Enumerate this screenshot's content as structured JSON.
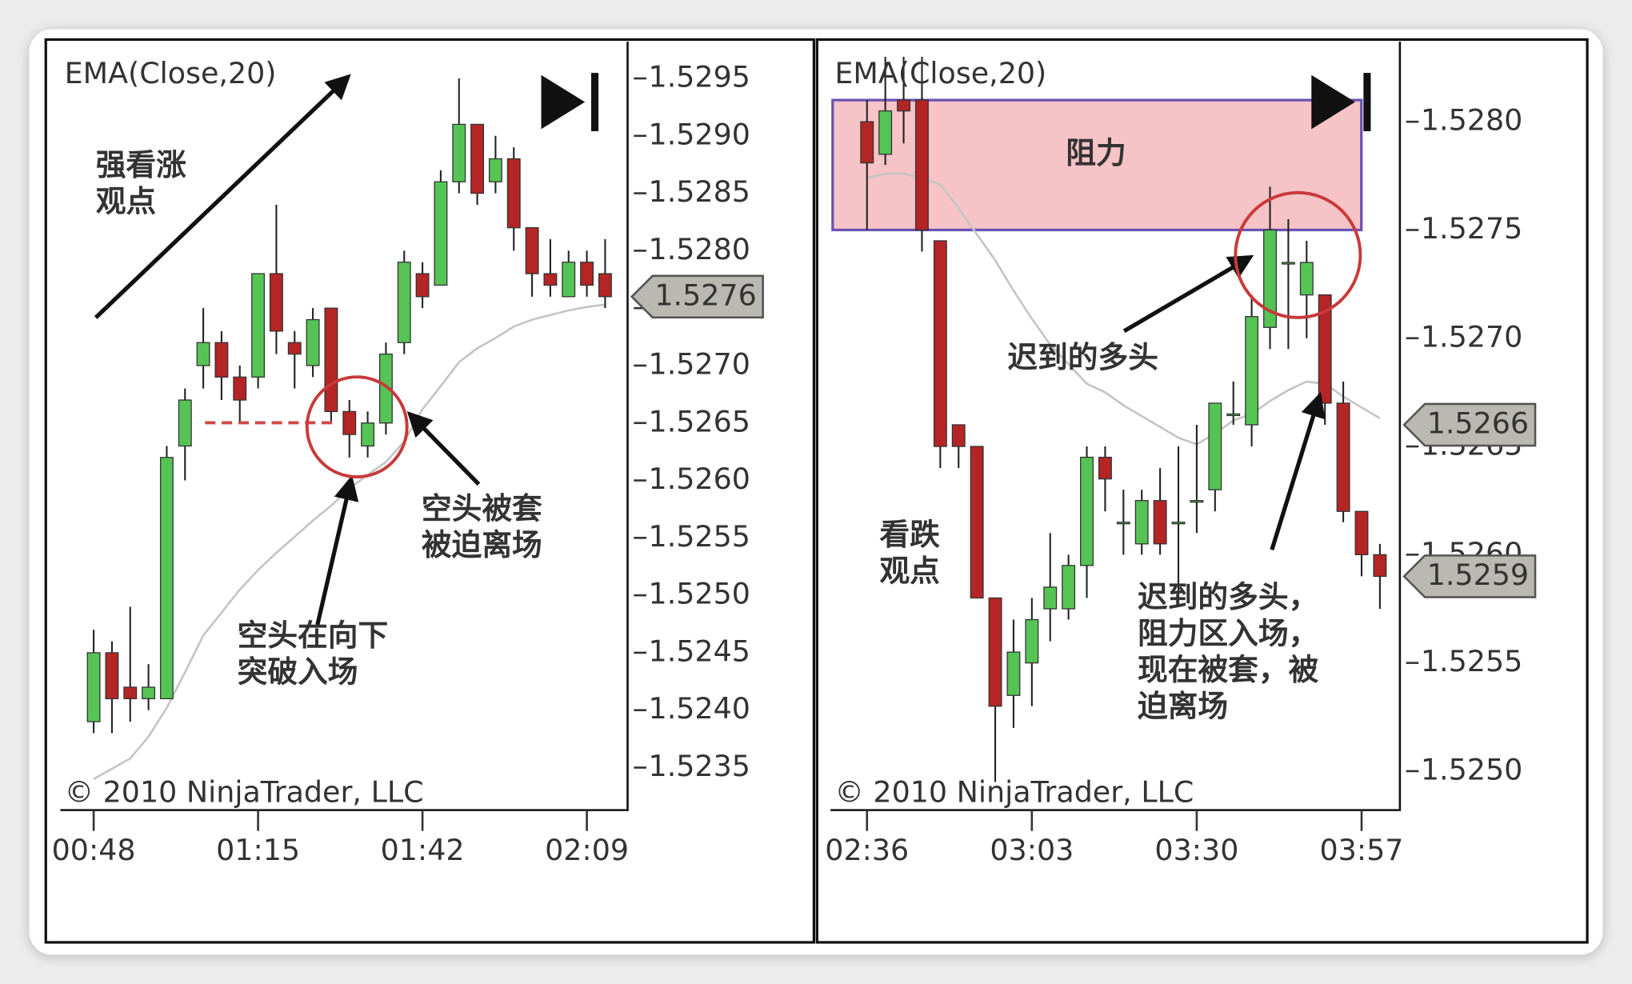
{
  "chart_data": [
    {
      "type": "candlestick",
      "categories": [
        "00:48",
        null,
        null,
        null,
        null,
        null,
        null,
        null,
        null,
        "01:15",
        null,
        null,
        null,
        null,
        null,
        null,
        null,
        null,
        "01:42",
        null,
        null,
        null,
        null,
        null,
        null,
        null,
        null,
        "02:09",
        null
      ],
      "open": [
        1.5239,
        1.5245,
        1.5242,
        1.5241,
        1.5241,
        1.5263,
        1.527,
        1.5272,
        1.5269,
        1.5269,
        1.5278,
        1.5272,
        1.527,
        1.5275,
        1.5266,
        1.5263,
        1.5265,
        1.5272,
        1.5278,
        1.5277,
        1.5286,
        1.5291,
        1.5286,
        1.5288,
        1.5282,
        1.5278,
        1.5276,
        1.5279,
        1.5278
      ],
      "high": [
        1.5247,
        1.5246,
        1.5249,
        1.5244,
        1.5263,
        1.5268,
        1.5275,
        1.5273,
        1.527,
        1.5278,
        1.5284,
        1.5273,
        1.5275,
        1.5275,
        1.5267,
        1.5266,
        1.5272,
        1.528,
        1.5279,
        1.5287,
        1.5295,
        1.5291,
        1.529,
        1.5289,
        1.5282,
        1.5281,
        1.528,
        1.528,
        1.5281
      ],
      "low": [
        1.5238,
        1.5238,
        1.5239,
        1.524,
        1.5241,
        1.526,
        1.5268,
        1.5267,
        1.5265,
        1.5268,
        1.5271,
        1.5268,
        1.5269,
        1.5265,
        1.5262,
        1.5262,
        1.5264,
        1.5271,
        1.5275,
        1.5277,
        1.5285,
        1.5284,
        1.5285,
        1.528,
        1.5276,
        1.5276,
        1.5276,
        1.5276,
        1.5275
      ],
      "close": [
        1.5245,
        1.5241,
        1.5241,
        1.5242,
        1.5262,
        1.5267,
        1.5272,
        1.5269,
        1.5267,
        1.5278,
        1.5273,
        1.5271,
        1.5274,
        1.5266,
        1.5264,
        1.5265,
        1.5271,
        1.5279,
        1.5276,
        1.5286,
        1.5291,
        1.5285,
        1.5288,
        1.5282,
        1.5278,
        1.5277,
        1.5279,
        1.5277,
        1.5276
      ],
      "up_color": "#55c455",
      "down_color": "#b52525",
      "ema": {
        "name": "EMA(Close,20)",
        "color": "#c4c4c4",
        "values": [
          1.5234,
          1.52349,
          1.52358,
          1.52377,
          1.52402,
          1.52433,
          1.52465,
          1.52485,
          1.52505,
          1.52522,
          1.52537,
          1.52551,
          1.52565,
          1.52578,
          1.52593,
          1.52605,
          1.52616,
          1.52634,
          1.52662,
          1.52682,
          1.52703,
          1.52715,
          1.52724,
          1.52734,
          1.5274,
          1.52744,
          1.52748,
          1.52751,
          1.52753
        ]
      },
      "ylim": [
        1.52313,
        1.52982
      ],
      "yticks": [
        1.5295,
        {
          "value": 1.529,
          "label": "1.5290"
        },
        1.5285,
        {
          "value": 1.528,
          "label": "1.5280"
        },
        1.5275,
        {
          "value": 1.527,
          "label": "1.5270"
        },
        1.5265,
        {
          "value": 1.526,
          "label": "1.5260"
        },
        1.5255,
        {
          "value": 1.525,
          "label": "1.5250"
        },
        1.5245,
        {
          "value": 1.524,
          "label": "1.5240"
        },
        1.5235
      ],
      "price_markers": [
        1.5276
      ],
      "annotations": [
        {
          "lines": [
            "强看涨",
            "观点"
          ]
        },
        {
          "lines": [
            "空头被套",
            "被迫离场"
          ]
        },
        {
          "lines": [
            "空头在向下",
            "突破入场"
          ]
        }
      ],
      "watermark": "© 2010 NinjaTrader, LLC"
    },
    {
      "type": "candlestick",
      "categories": [
        "02:36",
        null,
        null,
        null,
        null,
        null,
        null,
        null,
        null,
        "03:03",
        null,
        null,
        null,
        null,
        null,
        null,
        null,
        null,
        "03:30",
        null,
        null,
        null,
        null,
        null,
        null,
        null,
        null,
        "03:57",
        null
      ],
      "open": [
        1.528,
        1.52785,
        1.5281,
        1.5281,
        1.52745,
        1.5266,
        1.5265,
        1.5258,
        1.52535,
        1.5255,
        1.52575,
        1.52575,
        1.52595,
        1.52645,
        1.52615,
        1.52605,
        1.52625,
        1.52615,
        1.52625,
        1.5263,
        1.52665,
        1.5266,
        1.52705,
        1.52735,
        1.5272,
        1.5272,
        1.5267,
        1.5262,
        1.526
      ],
      "high": [
        1.5281,
        1.5283,
        1.5283,
        1.5283,
        1.52745,
        1.5266,
        1.5265,
        1.5258,
        1.5257,
        1.5258,
        1.5261,
        1.526,
        1.5265,
        1.5265,
        1.5263,
        1.5263,
        1.5264,
        1.5265,
        1.5266,
        1.5267,
        1.5268,
        1.5272,
        1.5277,
        1.52755,
        1.52745,
        1.5272,
        1.5268,
        1.5262,
        1.52605
      ],
      "low": [
        1.5275,
        1.5278,
        1.5279,
        1.5274,
        1.5264,
        1.5264,
        1.5258,
        1.52495,
        1.5252,
        1.5253,
        1.5256,
        1.5257,
        1.5258,
        1.5262,
        1.526,
        1.526,
        1.526,
        1.5258,
        1.5261,
        1.5262,
        1.5266,
        1.5265,
        1.52695,
        1.52695,
        1.527,
        1.5266,
        1.52615,
        1.5259,
        1.52575
      ],
      "close": [
        1.52781,
        1.52805,
        1.52805,
        1.5275,
        1.5265,
        1.5265,
        1.5258,
        1.5253,
        1.52555,
        1.5257,
        1.52585,
        1.52595,
        1.52645,
        1.52635,
        1.52615,
        1.52625,
        1.52605,
        1.52615,
        1.52625,
        1.5267,
        1.52665,
        1.5271,
        1.5275,
        1.52735,
        1.52735,
        1.5267,
        1.5262,
        1.526,
        1.5259
      ],
      "up_color": "#55c455",
      "down_color": "#b52525",
      "ema": {
        "name": "EMA(Close,20)",
        "color": "#c4c4c4",
        "values": [
          1.52774,
          1.52776,
          1.52776,
          1.52774,
          1.52771,
          1.5276,
          1.52748,
          1.52736,
          1.52722,
          1.52709,
          1.52697,
          1.52688,
          1.52679,
          1.52675,
          1.52669,
          1.52664,
          1.52659,
          1.52654,
          1.52651,
          1.52656,
          1.52662,
          1.52665,
          1.52671,
          1.52676,
          1.5268,
          1.52679,
          1.52673,
          1.52668,
          1.52663
        ]
      },
      "ylim": [
        1.52482,
        1.52837
      ],
      "yticks": [
        {
          "value": 1.528,
          "label": "1.5280"
        },
        1.5275,
        {
          "value": 1.527,
          "label": "1.5270"
        },
        1.5265,
        {
          "value": 1.526,
          "label": "1.5260"
        },
        1.5255,
        {
          "value": 1.525,
          "label": "1.5250"
        }
      ],
      "zone": {
        "label": "阻力",
        "range": [
          1.5275,
          1.5281
        ]
      },
      "price_markers": [
        1.5266,
        1.5259
      ],
      "annotations": [
        {
          "lines": [
            "迟到的多头"
          ]
        },
        {
          "lines": [
            "看跌",
            "观点"
          ]
        },
        {
          "lines": [
            "迟到的多头，",
            "阻力区入场，",
            "现在被套，被",
            "迫离场"
          ]
        }
      ],
      "watermark": "© 2010 NinjaTrader, LLC"
    }
  ]
}
